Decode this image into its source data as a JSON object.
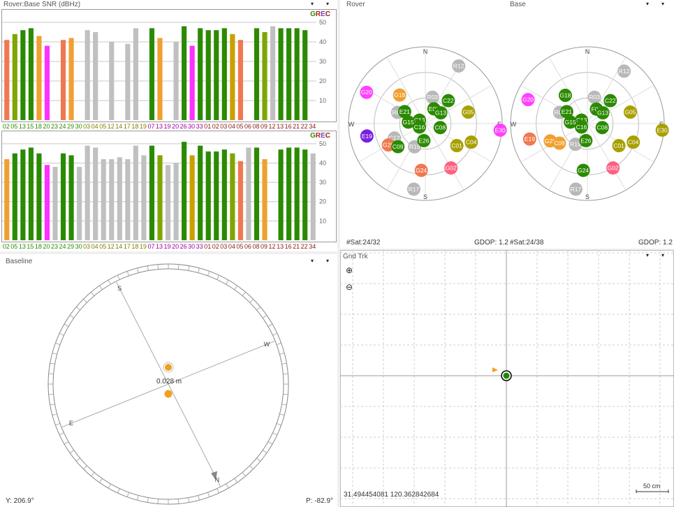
{
  "snr": {
    "title": "Rover:Base SNR (dBHz)",
    "legend": [
      {
        "ch": "G",
        "color": "#2e8b00"
      },
      {
        "ch": "R",
        "color": "#b22222"
      },
      {
        "ch": "E",
        "color": "#7b3fbf"
      },
      {
        "ch": "C",
        "color": "#8b1a1a"
      }
    ],
    "yticks": [
      10,
      20,
      30,
      40,
      50
    ]
  },
  "chart_data": [
    {
      "type": "bar",
      "title": "Rover:Base SNR (dBHz)",
      "ylim": [
        0,
        55
      ],
      "categories": [
        "02",
        "05",
        "13",
        "15",
        "18",
        "20",
        "23",
        "24",
        "29",
        "30",
        "03",
        "04",
        "05",
        "12",
        "14",
        "17",
        "18",
        "19",
        "07",
        "13",
        "19",
        "20",
        "26",
        "30",
        "33",
        "01",
        "02",
        "03",
        "04",
        "05",
        "06",
        "08",
        "09",
        "12",
        "13",
        "16",
        "21",
        "22",
        "34"
      ],
      "label_colors": [
        "#2e8b00",
        "#2e8b00",
        "#2e8b00",
        "#2e8b00",
        "#2e8b00",
        "#2e8b00",
        "#2e8b00",
        "#2e8b00",
        "#2e8b00",
        "#2e8b00",
        "#808000",
        "#808000",
        "#808000",
        "#808000",
        "#808000",
        "#808000",
        "#808000",
        "#808000",
        "#a000a0",
        "#a000a0",
        "#a000a0",
        "#a000a0",
        "#a000a0",
        "#a000a0",
        "#a000a0",
        "#8b1a1a",
        "#8b1a1a",
        "#8b1a1a",
        "#8b1a1a",
        "#8b1a1a",
        "#8b1a1a",
        "#8b1a1a",
        "#8b1a1a",
        "#8b1a1a",
        "#8b1a1a",
        "#8b1a1a",
        "#8b1a1a",
        "#8b1a1a",
        "#8b1a1a"
      ],
      "values": [
        41,
        44,
        46,
        47,
        43,
        38,
        0,
        41,
        42,
        0,
        46,
        45,
        0,
        40,
        0,
        39,
        47,
        0,
        47,
        42,
        0,
        40,
        48,
        38,
        47,
        46,
        46,
        47,
        44,
        41,
        0,
        47,
        45,
        48,
        47,
        47,
        47,
        46,
        0
      ],
      "bar_colors": [
        "#f07850",
        "#7fa600",
        "#2a8a00",
        "#2a8a00",
        "#f0a030",
        "#ff30ff",
        "#c0c0c0",
        "#f07850",
        "#f0a030",
        "#c0c0c0",
        "#c0c0c0",
        "#c0c0c0",
        "#c0c0c0",
        "#c0c0c0",
        "#c0c0c0",
        "#c0c0c0",
        "#c0c0c0",
        "#c0c0c0",
        "#2a8a00",
        "#f0a030",
        "#c0c0c0",
        "#c0c0c0",
        "#2a8a00",
        "#ff30ff",
        "#2a8a00",
        "#2a8a00",
        "#2a8a00",
        "#2a8a00",
        "#c8a000",
        "#f07850",
        "#c0c0c0",
        "#2a8a00",
        "#7fa600",
        "#c0c0c0",
        "#2a8a00",
        "#2a8a00",
        "#2a8a00",
        "#2a8a00",
        "#c0c0c0"
      ]
    },
    {
      "type": "bar",
      "title": "",
      "ylim": [
        0,
        55
      ],
      "categories": [
        "02",
        "05",
        "13",
        "15",
        "18",
        "20",
        "23",
        "24",
        "29",
        "30",
        "03",
        "04",
        "05",
        "12",
        "14",
        "17",
        "18",
        "19",
        "07",
        "13",
        "19",
        "20",
        "26",
        "30",
        "33",
        "01",
        "02",
        "03",
        "04",
        "05",
        "06",
        "08",
        "09",
        "12",
        "13",
        "16",
        "21",
        "22",
        "34"
      ],
      "label_colors": [
        "#2e8b00",
        "#2e8b00",
        "#2e8b00",
        "#2e8b00",
        "#2e8b00",
        "#2e8b00",
        "#2e8b00",
        "#2e8b00",
        "#2e8b00",
        "#2e8b00",
        "#808000",
        "#808000",
        "#808000",
        "#808000",
        "#808000",
        "#808000",
        "#808000",
        "#808000",
        "#a000a0",
        "#a000a0",
        "#a000a0",
        "#a000a0",
        "#a000a0",
        "#a000a0",
        "#a000a0",
        "#8b1a1a",
        "#8b1a1a",
        "#8b1a1a",
        "#8b1a1a",
        "#8b1a1a",
        "#8b1a1a",
        "#8b1a1a",
        "#8b1a1a",
        "#8b1a1a",
        "#8b1a1a",
        "#8b1a1a",
        "#8b1a1a",
        "#8b1a1a",
        "#8b1a1a"
      ],
      "values": [
        42,
        45,
        47,
        48,
        45,
        39,
        38,
        45,
        44,
        38,
        49,
        48,
        42,
        42,
        43,
        42,
        49,
        44,
        49,
        44,
        39,
        40,
        51,
        44,
        49,
        46,
        46,
        47,
        45,
        41,
        48,
        48,
        42,
        0,
        47,
        48,
        48,
        47,
        45
      ],
      "bar_colors": [
        "#f0a030",
        "#2a8a00",
        "#2a8a00",
        "#2a8a00",
        "#2a8a00",
        "#ff30ff",
        "#c0c0c0",
        "#2a8a00",
        "#2a8a00",
        "#c0c0c0",
        "#c0c0c0",
        "#c0c0c0",
        "#c0c0c0",
        "#c0c0c0",
        "#c0c0c0",
        "#c0c0c0",
        "#c0c0c0",
        "#c0c0c0",
        "#2a8a00",
        "#7fa600",
        "#c0c0c0",
        "#c0c0c0",
        "#2a8a00",
        "#c8a000",
        "#2a8a00",
        "#2a8a00",
        "#2a8a00",
        "#2a8a00",
        "#7fa600",
        "#f07850",
        "#c0c0c0",
        "#2a8a00",
        "#f0a030",
        "#c0c0c0",
        "#2a8a00",
        "#2a8a00",
        "#2a8a00",
        "#2a8a00",
        "#c0c0c0"
      ]
    }
  ],
  "skyplots": [
    {
      "title": "Rover",
      "status_left": "#Sat:24/32",
      "status_right": "GDOP: 1.2",
      "dirs": {
        "n": "N",
        "s": "S",
        "e": "E",
        "w": "W"
      },
      "sats": [
        {
          "id": "R12",
          "color": "#b8b8b8",
          "az": 30,
          "el": 12
        },
        {
          "id": "G20",
          "color": "#ff40ff",
          "az": 298,
          "el": 12
        },
        {
          "id": "G18",
          "color": "#f0a030",
          "az": 318,
          "el": 45
        },
        {
          "id": "R03",
          "color": "#b8b8b8",
          "az": 15,
          "el": 58
        },
        {
          "id": "R04",
          "color": "#b8b8b8",
          "az": 292,
          "el": 55
        },
        {
          "id": "E21",
          "color": "#2a8a00",
          "az": 300,
          "el": 62
        },
        {
          "id": "E07",
          "color": "#2a8a00",
          "az": 30,
          "el": 70
        },
        {
          "id": "C22",
          "color": "#2a8a00",
          "az": 45,
          "el": 52
        },
        {
          "id": "G13",
          "color": "#2a8a00",
          "az": 55,
          "el": 68
        },
        {
          "id": "G05",
          "color": "#a8a000",
          "az": 75,
          "el": 38
        },
        {
          "id": "E30",
          "color": "#ff40ff",
          "az": 95,
          "el": 2
        },
        {
          "id": "C13",
          "color": "#2a8a00",
          "az": 300,
          "el": 82
        },
        {
          "id": "G15",
          "color": "#2a8a00",
          "az": 275,
          "el": 70
        },
        {
          "id": "C16",
          "color": "#2a8a00",
          "az": 240,
          "el": 82
        },
        {
          "id": "C08",
          "color": "#2a8a00",
          "az": 105,
          "el": 72
        },
        {
          "id": "E19",
          "color": "#7a20e0",
          "az": 258,
          "el": 20
        },
        {
          "id": "C12",
          "color": "#b8b8b8",
          "az": 245,
          "el": 50
        },
        {
          "id": "G29",
          "color": "#f07850",
          "az": 240,
          "el": 40
        },
        {
          "id": "C09",
          "color": "#2a8a00",
          "az": 230,
          "el": 48
        },
        {
          "id": "R19",
          "color": "#b8b8b8",
          "az": 205,
          "el": 60
        },
        {
          "id": "E26",
          "color": "#2a8a00",
          "az": 185,
          "el": 70
        },
        {
          "id": "C01",
          "color": "#a8a000",
          "az": 125,
          "el": 45
        },
        {
          "id": "C04",
          "color": "#a8a000",
          "az": 112,
          "el": 32
        },
        {
          "id": "G24",
          "color": "#f07850",
          "az": 185,
          "el": 35
        },
        {
          "id": "G02",
          "color": "#ff6080",
          "az": 150,
          "el": 30
        },
        {
          "id": "R17",
          "color": "#b8b8b8",
          "az": 190,
          "el": 12
        }
      ]
    },
    {
      "title": "Base",
      "status_left": "#Sat:24/38",
      "status_right": "GDOP: 1.2",
      "dirs": {
        "n": "N",
        "s": "S",
        "e": "E",
        "w": "W"
      },
      "sats": [
        {
          "id": "R12",
          "color": "#b8b8b8",
          "az": 35,
          "el": 15
        },
        {
          "id": "G20",
          "color": "#ff40ff",
          "az": 292,
          "el": 15
        },
        {
          "id": "G18",
          "color": "#2a8a00",
          "az": 322,
          "el": 48
        },
        {
          "id": "R03",
          "color": "#b8b8b8",
          "az": 15,
          "el": 58
        },
        {
          "id": "R04",
          "color": "#b8b8b8",
          "az": 292,
          "el": 55
        },
        {
          "id": "E21",
          "color": "#2a8a00",
          "az": 300,
          "el": 62
        },
        {
          "id": "F07",
          "color": "#2a8a00",
          "az": 32,
          "el": 70
        },
        {
          "id": "C22",
          "color": "#2a8a00",
          "az": 45,
          "el": 52
        },
        {
          "id": "G13",
          "color": "#2a8a00",
          "az": 55,
          "el": 68
        },
        {
          "id": "G05",
          "color": "#a8a000",
          "az": 75,
          "el": 38
        },
        {
          "id": "E30",
          "color": "#a8a000",
          "az": 95,
          "el": 2
        },
        {
          "id": "C13",
          "color": "#2a8a00",
          "az": 300,
          "el": 82
        },
        {
          "id": "G15",
          "color": "#2a8a00",
          "az": 275,
          "el": 70
        },
        {
          "id": "C16",
          "color": "#2a8a00",
          "az": 240,
          "el": 82
        },
        {
          "id": "C08",
          "color": "#2a8a00",
          "az": 105,
          "el": 72
        },
        {
          "id": "E19",
          "color": "#f07850",
          "az": 255,
          "el": 20
        },
        {
          "id": "G29",
          "color": "#f0a030",
          "az": 245,
          "el": 42
        },
        {
          "id": "C09",
          "color": "#f0a030",
          "az": 235,
          "el": 50
        },
        {
          "id": "R19",
          "color": "#b8b8b8",
          "az": 210,
          "el": 62
        },
        {
          "id": "E26",
          "color": "#2a8a00",
          "az": 185,
          "el": 70
        },
        {
          "id": "C01",
          "color": "#a8a000",
          "az": 125,
          "el": 45
        },
        {
          "id": "C04",
          "color": "#a8a000",
          "az": 112,
          "el": 32
        },
        {
          "id": "G24",
          "color": "#2a8a00",
          "az": 185,
          "el": 35
        },
        {
          "id": "G02",
          "color": "#ff6080",
          "az": 150,
          "el": 30
        },
        {
          "id": "R17",
          "color": "#b8b8b8",
          "az": 190,
          "el": 12
        }
      ]
    }
  ],
  "baseline": {
    "title": "Baseline",
    "distance": "0.028 m",
    "yaw": "Y: 206.9°",
    "pitch": "P: -82.9°",
    "dirs": {
      "s": "S",
      "w": "W",
      "e": "E",
      "n": "N"
    }
  },
  "gndtrk": {
    "title": "Gnd Trk",
    "coords": "31.494454081 120.362842684",
    "scale": "50 cm"
  }
}
